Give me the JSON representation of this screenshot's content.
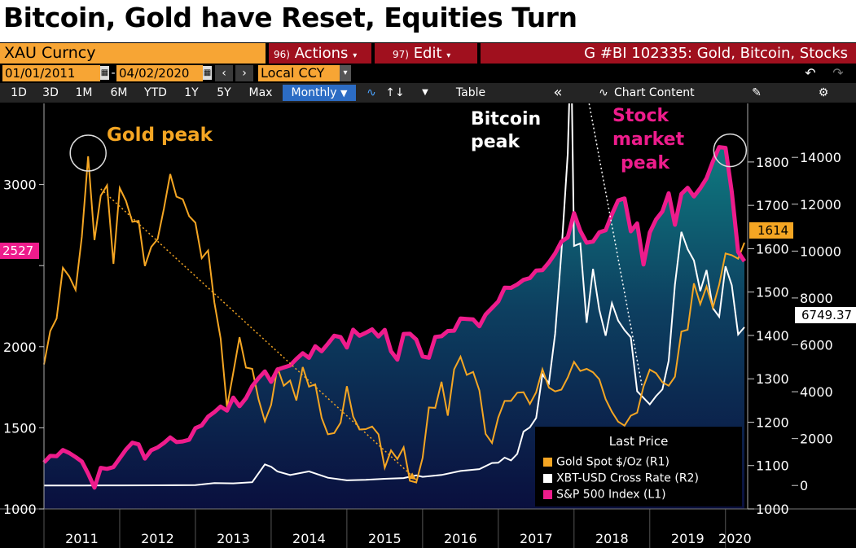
{
  "title": "Bitcoin, Gold have Reset, Equities Turn",
  "toolbar": {
    "ticker": "XAU Curncy",
    "actions_num": "96)",
    "actions_label": "Actions",
    "edit_num": "97)",
    "edit_label": "Edit",
    "chart_id": "G #BI 102335: Gold, Bitcoin, Stocks",
    "start_date": "01/01/2011",
    "date_sep": "-",
    "end_date": "04/02/2020",
    "currency": "Local CCY",
    "periods": [
      "1D",
      "3D",
      "1M",
      "6M",
      "YTD",
      "1Y",
      "5Y",
      "Max"
    ],
    "frequency": "Monthly",
    "table_label": "Table",
    "chart_content_label": "Chart Content"
  },
  "legend": {
    "title": "Last Price",
    "entries": [
      {
        "label": "Gold Spot $/Oz  (R1)",
        "color": "#f5a623"
      },
      {
        "label": "XBT-USD Cross Rate  (R2)",
        "color": "#ffffff"
      },
      {
        "label": "S&P 500 Index  (L1)",
        "color": "#ee1c8c"
      }
    ]
  },
  "annotations": {
    "gold_peak": "Gold  peak",
    "bitcoin_peak_1": "Bitcoin",
    "bitcoin_peak_2": "peak",
    "stock_peak_1": "Stock",
    "stock_peak_2": "market",
    "stock_peak_3": "peak"
  },
  "last_values": {
    "spx": "2527",
    "gold": "1614",
    "btc": "6749.37"
  },
  "colors": {
    "gold": "#f5a623",
    "bitcoin": "#ffffff",
    "spx": "#ee1c8c",
    "background": "#000000",
    "area_top": "#0f6f78",
    "area_bottom": "#0a1040",
    "toolbar_orange": "#f7a534",
    "toolbar_red": "#a0101e"
  },
  "chart_data": {
    "type": "line",
    "title": "Bitcoin, Gold have Reset, Equities Turn",
    "x_labels": [
      "2011",
      "2012",
      "2013",
      "2014",
      "2015",
      "2016",
      "2017",
      "2018",
      "2019",
      "2020"
    ],
    "x_range": [
      2011.0,
      2020.25
    ],
    "axes": {
      "left": {
        "series": "S&P 500 Index",
        "ticks": [
          1000,
          1500,
          2000,
          2500,
          3000
        ],
        "tick_labels": [
          "1000",
          "1500",
          "2000",
          "",
          "3000"
        ],
        "range": [
          1000,
          3500
        ]
      },
      "right1": {
        "series": "Gold Spot $/Oz",
        "ticks": [
          1000,
          1100,
          1200,
          1300,
          1400,
          1500,
          1600,
          1700,
          1800
        ],
        "range": [
          1000,
          1935
        ]
      },
      "right2": {
        "series": "XBT-USD Cross Rate",
        "ticks": [
          0,
          2000,
          4000,
          6000,
          8000,
          10000,
          12000,
          14000
        ],
        "range": [
          -1000,
          16300
        ]
      }
    },
    "series": [
      {
        "name": "S&P 500 Index",
        "axis": "left",
        "style": "area-line",
        "x": [
          2011.0,
          2011.083,
          2011.167,
          2011.25,
          2011.333,
          2011.417,
          2011.5,
          2011.583,
          2011.667,
          2011.75,
          2011.833,
          2011.917,
          2012.0,
          2012.083,
          2012.167,
          2012.25,
          2012.333,
          2012.417,
          2012.5,
          2012.583,
          2012.667,
          2012.75,
          2012.833,
          2012.917,
          2013.0,
          2013.083,
          2013.167,
          2013.25,
          2013.333,
          2013.417,
          2013.5,
          2013.583,
          2013.667,
          2013.75,
          2013.833,
          2013.917,
          2014.0,
          2014.083,
          2014.167,
          2014.25,
          2014.333,
          2014.417,
          2014.5,
          2014.583,
          2014.667,
          2014.75,
          2014.833,
          2014.917,
          2015.0,
          2015.083,
          2015.167,
          2015.25,
          2015.333,
          2015.417,
          2015.5,
          2015.583,
          2015.667,
          2015.75,
          2015.833,
          2015.917,
          2016.0,
          2016.083,
          2016.167,
          2016.25,
          2016.333,
          2016.417,
          2016.5,
          2016.583,
          2016.667,
          2016.75,
          2016.833,
          2016.917,
          2017.0,
          2017.083,
          2017.167,
          2017.25,
          2017.333,
          2017.417,
          2017.5,
          2017.583,
          2017.667,
          2017.75,
          2017.833,
          2017.917,
          2018.0,
          2018.083,
          2018.167,
          2018.25,
          2018.333,
          2018.417,
          2018.5,
          2018.583,
          2018.667,
          2018.75,
          2018.833,
          2018.917,
          2019.0,
          2019.083,
          2019.167,
          2019.25,
          2019.333,
          2019.417,
          2019.5,
          2019.583,
          2019.667,
          2019.75,
          2019.833,
          2019.917,
          2020.0,
          2020.083,
          2020.167,
          2020.25
        ],
        "values": [
          1286,
          1327,
          1325,
          1363,
          1345,
          1320,
          1292,
          1218,
          1131,
          1253,
          1247,
          1258,
          1312,
          1366,
          1408,
          1398,
          1310,
          1362,
          1379,
          1406,
          1441,
          1412,
          1416,
          1426,
          1498,
          1515,
          1569,
          1597,
          1631,
          1606,
          1686,
          1633,
          1682,
          1757,
          1806,
          1848,
          1783,
          1859,
          1872,
          1884,
          1924,
          1960,
          1931,
          2003,
          1972,
          2018,
          2068,
          2059,
          1995,
          2105,
          2068,
          2086,
          2107,
          2063,
          2104,
          1972,
          1920,
          2079,
          2080,
          2044,
          1940,
          1932,
          2060,
          2065,
          2097,
          2099,
          2174,
          2171,
          2168,
          2126,
          2199,
          2239,
          2279,
          2364,
          2363,
          2384,
          2412,
          2423,
          2470,
          2472,
          2519,
          2575,
          2648,
          2674,
          2824,
          2714,
          2641,
          2648,
          2705,
          2718,
          2816,
          2902,
          2914,
          2712,
          2760,
          2507,
          2704,
          2784,
          2834,
          2946,
          2752,
          2942,
          2980,
          2926,
          2977,
          3038,
          3141,
          3231,
          3226,
          2954,
          2585,
          2527
        ]
      },
      {
        "name": "Gold Spot $/Oz",
        "axis": "right1",
        "style": "line",
        "x": [
          2011.0,
          2011.083,
          2011.167,
          2011.25,
          2011.333,
          2011.417,
          2011.5,
          2011.583,
          2011.667,
          2011.75,
          2011.833,
          2011.917,
          2012.0,
          2012.083,
          2012.167,
          2012.25,
          2012.333,
          2012.417,
          2012.5,
          2012.583,
          2012.667,
          2012.75,
          2012.833,
          2012.917,
          2013.0,
          2013.083,
          2013.167,
          2013.25,
          2013.333,
          2013.417,
          2013.5,
          2013.583,
          2013.667,
          2013.75,
          2013.833,
          2013.917,
          2014.0,
          2014.083,
          2014.167,
          2014.25,
          2014.333,
          2014.417,
          2014.5,
          2014.583,
          2014.667,
          2014.75,
          2014.833,
          2014.917,
          2015.0,
          2015.083,
          2015.167,
          2015.25,
          2015.333,
          2015.417,
          2015.5,
          2015.583,
          2015.667,
          2015.75,
          2015.833,
          2015.917,
          2016.0,
          2016.083,
          2016.167,
          2016.25,
          2016.333,
          2016.417,
          2016.5,
          2016.583,
          2016.667,
          2016.75,
          2016.833,
          2016.917,
          2017.0,
          2017.083,
          2017.167,
          2017.25,
          2017.333,
          2017.417,
          2017.5,
          2017.583,
          2017.667,
          2017.75,
          2017.833,
          2017.917,
          2018.0,
          2018.083,
          2018.167,
          2018.25,
          2018.333,
          2018.417,
          2018.5,
          2018.583,
          2018.667,
          2018.75,
          2018.833,
          2018.917,
          2019.0,
          2019.083,
          2019.167,
          2019.25,
          2019.333,
          2019.417,
          2019.5,
          2019.583,
          2019.667,
          2019.75,
          2019.833,
          2019.917,
          2020.0,
          2020.083,
          2020.167,
          2020.25
        ],
        "values": [
          1333,
          1410,
          1439,
          1556,
          1536,
          1505,
          1628,
          1813,
          1620,
          1722,
          1746,
          1565,
          1740,
          1710,
          1662,
          1664,
          1560,
          1604,
          1622,
          1692,
          1772,
          1720,
          1714,
          1675,
          1660,
          1578,
          1596,
          1476,
          1393,
          1234,
          1314,
          1396,
          1326,
          1323,
          1253,
          1202,
          1240,
          1326,
          1284,
          1296,
          1250,
          1327,
          1282,
          1287,
          1210,
          1172,
          1175,
          1199,
          1283,
          1213,
          1183,
          1184,
          1190,
          1172,
          1095,
          1135,
          1115,
          1142,
          1065,
          1061,
          1118,
          1234,
          1233,
          1293,
          1215,
          1322,
          1351,
          1309,
          1316,
          1273,
          1173,
          1152,
          1211,
          1249,
          1249,
          1268,
          1269,
          1242,
          1269,
          1322,
          1280,
          1271,
          1275,
          1303,
          1339,
          1318,
          1323,
          1315,
          1299,
          1253,
          1224,
          1201,
          1192,
          1215,
          1222,
          1282,
          1321,
          1313,
          1292,
          1284,
          1305,
          1409,
          1413,
          1520,
          1472,
          1513,
          1464,
          1517,
          1589,
          1585,
          1577,
          1614
        ]
      },
      {
        "name": "XBT-USD Cross Rate",
        "axis": "right2",
        "style": "line",
        "x": [
          2011.0,
          2011.5,
          2012.0,
          2012.5,
          2013.0,
          2013.25,
          2013.5,
          2013.75,
          2013.917,
          2014.0,
          2014.083,
          2014.25,
          2014.5,
          2014.75,
          2015.0,
          2015.25,
          2015.5,
          2015.75,
          2015.917,
          2016.0,
          2016.25,
          2016.5,
          2016.75,
          2016.917,
          2017.0,
          2017.083,
          2017.167,
          2017.25,
          2017.333,
          2017.417,
          2017.5,
          2017.583,
          2017.667,
          2017.75,
          2017.833,
          2017.917,
          2017.96,
          2018.0,
          2018.083,
          2018.167,
          2018.25,
          2018.333,
          2018.417,
          2018.5,
          2018.583,
          2018.667,
          2018.75,
          2018.833,
          2018.917,
          2019.0,
          2019.083,
          2019.167,
          2019.25,
          2019.333,
          2019.417,
          2019.5,
          2019.583,
          2019.667,
          2019.75,
          2019.833,
          2019.917,
          2020.0,
          2020.083,
          2020.167,
          2020.25
        ],
        "values": [
          0,
          0,
          5,
          7,
          13,
          100,
          90,
          140,
          900,
          800,
          600,
          450,
          600,
          330,
          220,
          240,
          285,
          315,
          430,
          370,
          450,
          620,
          700,
          960,
          970,
          1190,
          1070,
          1350,
          2300,
          2480,
          2880,
          4740,
          4360,
          6470,
          9950,
          14160,
          19000,
          10220,
          10330,
          6940,
          9240,
          7500,
          6390,
          7780,
          7030,
          6630,
          6320,
          4020,
          3740,
          3460,
          3810,
          4100,
          5320,
          8570,
          10820,
          10080,
          9600,
          8290,
          9190,
          7570,
          7200,
          9350,
          8540,
          6440,
          6749
        ]
      }
    ]
  }
}
